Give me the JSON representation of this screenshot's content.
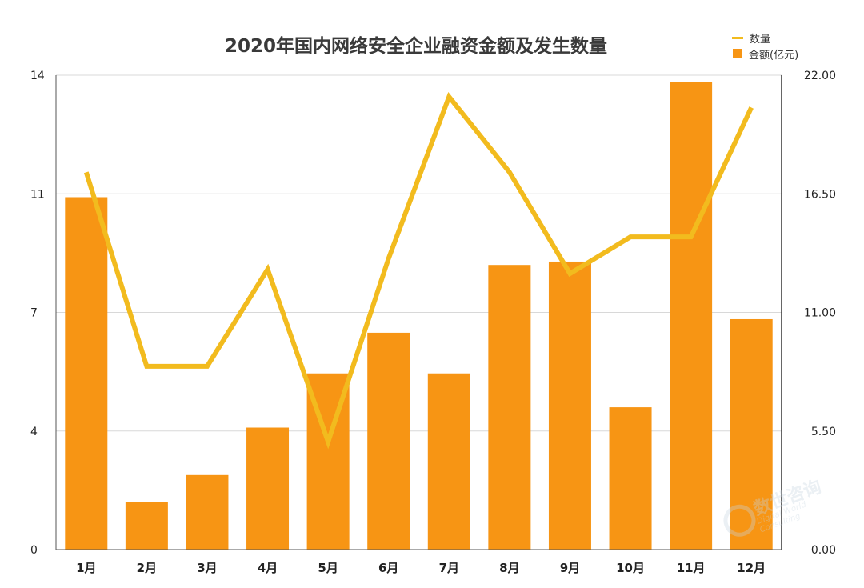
{
  "chart_data": {
    "type": "bar+line",
    "title": "2020年国内网络安全企业融资金额及发生数量",
    "categories": [
      "1月",
      "2月",
      "3月",
      "4月",
      "5月",
      "6月",
      "7月",
      "8月",
      "9月",
      "10月",
      "11月",
      "12月"
    ],
    "series": [
      {
        "name": "金额(亿元)",
        "type": "bar",
        "axis": "left",
        "color": "#f79514",
        "values": [
          10.4,
          1.4,
          2.2,
          3.6,
          5.2,
          6.4,
          5.2,
          8.4,
          8.5,
          4.2,
          13.8,
          6.8
        ]
      },
      {
        "name": "数量",
        "type": "line",
        "axis": "right",
        "color": "#f2bb1e",
        "values": [
          17.5,
          8.5,
          8.5,
          13,
          5,
          13.5,
          21,
          17.5,
          12.8,
          14.5,
          14.5,
          20.5
        ]
      }
    ],
    "y_left": {
      "range": [
        0,
        14
      ],
      "ticks": [
        "0",
        "4",
        "7",
        "11",
        "14"
      ],
      "tick_values": [
        0,
        3.5,
        7,
        10.5,
        14
      ]
    },
    "y_right": {
      "range": [
        0,
        22
      ],
      "ticks": [
        "0.00",
        "5.50",
        "11.00",
        "16.50",
        "22.00"
      ],
      "tick_values": [
        0,
        5.5,
        11,
        16.5,
        22
      ]
    },
    "grid": true,
    "legend_position": "top-right"
  },
  "watermark": {
    "name": "数世咨询",
    "subtitle": "Digital World Consulting"
  }
}
